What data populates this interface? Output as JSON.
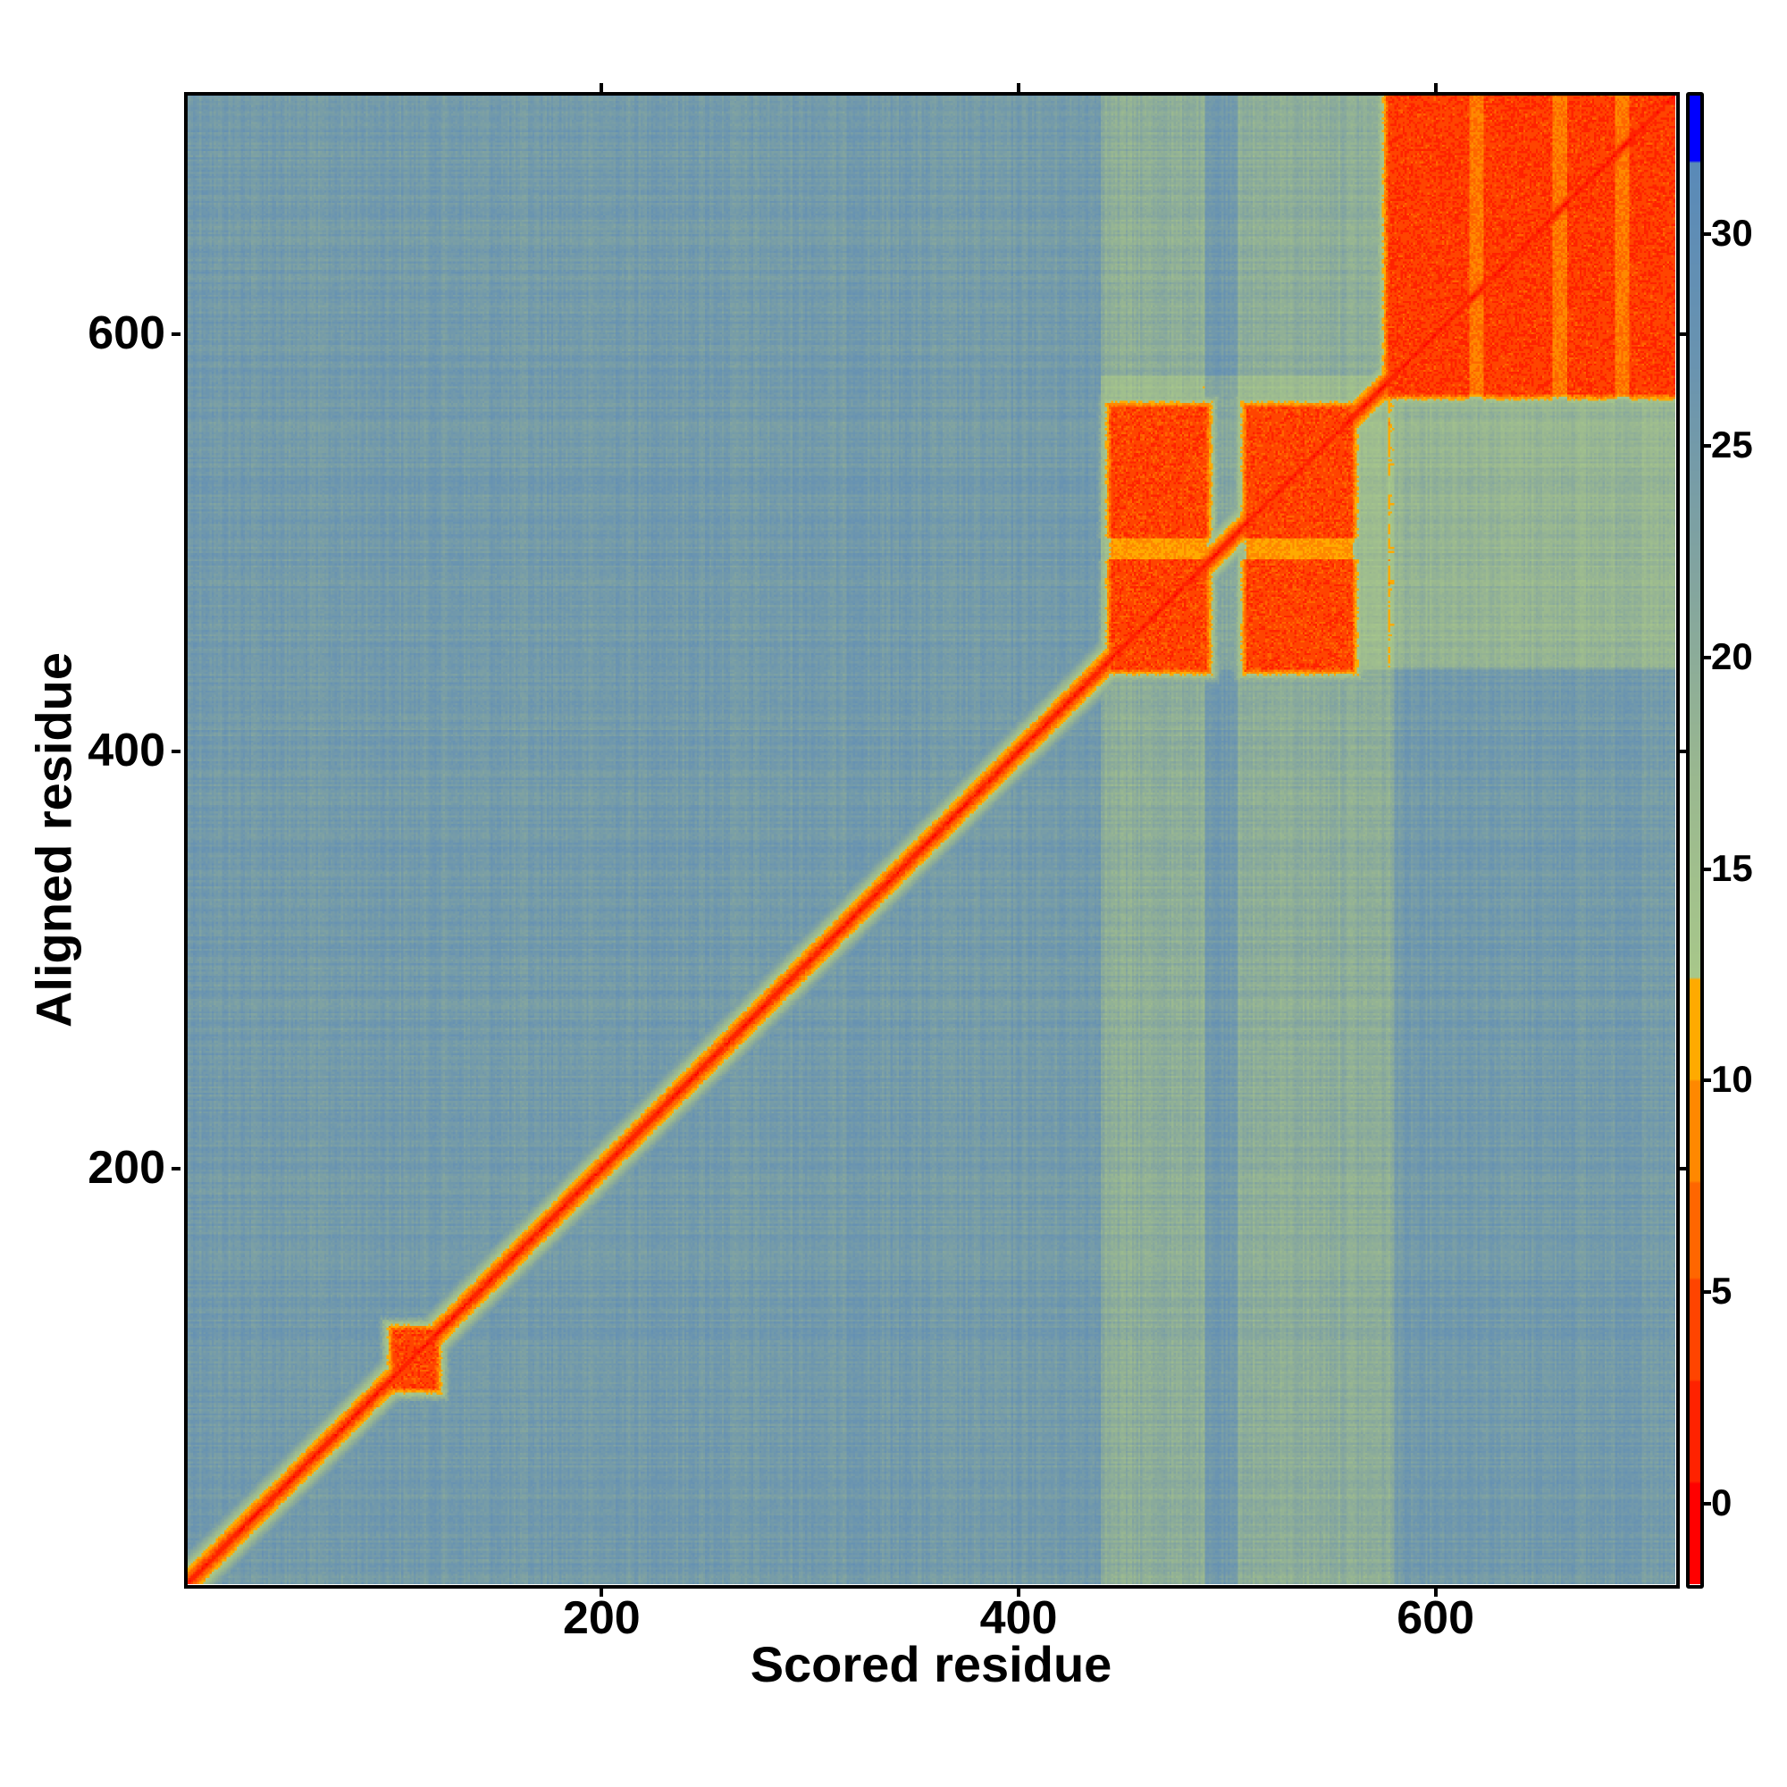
{
  "chart_data": {
    "type": "heatmap",
    "title": "",
    "xlabel": "Scored residue",
    "ylabel": "Aligned residue",
    "xlim": [
      1,
      715
    ],
    "ylim": [
      1,
      715
    ],
    "xticks": [
      200,
      400,
      600
    ],
    "yticks": [
      200,
      400,
      600
    ],
    "colorbar": {
      "range": [
        -1.9,
        33.3
      ],
      "ticks": [
        0,
        5,
        10,
        15,
        20,
        25,
        30
      ],
      "bands": [
        {
          "from": -1.9,
          "to": 0.5,
          "color": "#ff0000"
        },
        {
          "from": 0.5,
          "to": 2.9,
          "color": "#ff2200"
        },
        {
          "from": 2.9,
          "to": 5.3,
          "color": "#ff4400"
        },
        {
          "from": 5.3,
          "to": 7.6,
          "color": "#ff6600"
        },
        {
          "from": 7.6,
          "to": 10.0,
          "color": "#ff8800"
        },
        {
          "from": 10.0,
          "to": 12.4,
          "color": "#ffaa00"
        },
        {
          "from": 12.4,
          "to": 31.7,
          "gradient": [
            "#a8c88a",
            "#9ab890",
            "#82a4a0",
            "#6a94b0",
            "#5a8ab8"
          ]
        },
        {
          "from": 31.7,
          "to": 33.3,
          "color": "#0000ff"
        }
      ]
    },
    "features": {
      "background_value": 25,
      "lighter_region_value": 19,
      "diagonal_low_value": 0,
      "low_blocks": [
        {
          "x": [
            100,
            120
          ],
          "y": [
            95,
            122
          ],
          "value": 2
        },
        {
          "x": [
            445,
            490
          ],
          "y": [
            440,
            565
          ],
          "value": 2
        },
        {
          "x": [
            510,
            560
          ],
          "y": [
            440,
            565
          ],
          "value": 2
        },
        {
          "x": [
            578,
            715
          ],
          "y": [
            572,
            715
          ],
          "value": 1.5
        }
      ],
      "lighter_columns": [
        [
          440,
          580
        ]
      ],
      "lighter_rows": [
        [
          440,
          580
        ]
      ],
      "blue_columns": [
        [
          490,
          505
        ]
      ]
    }
  }
}
